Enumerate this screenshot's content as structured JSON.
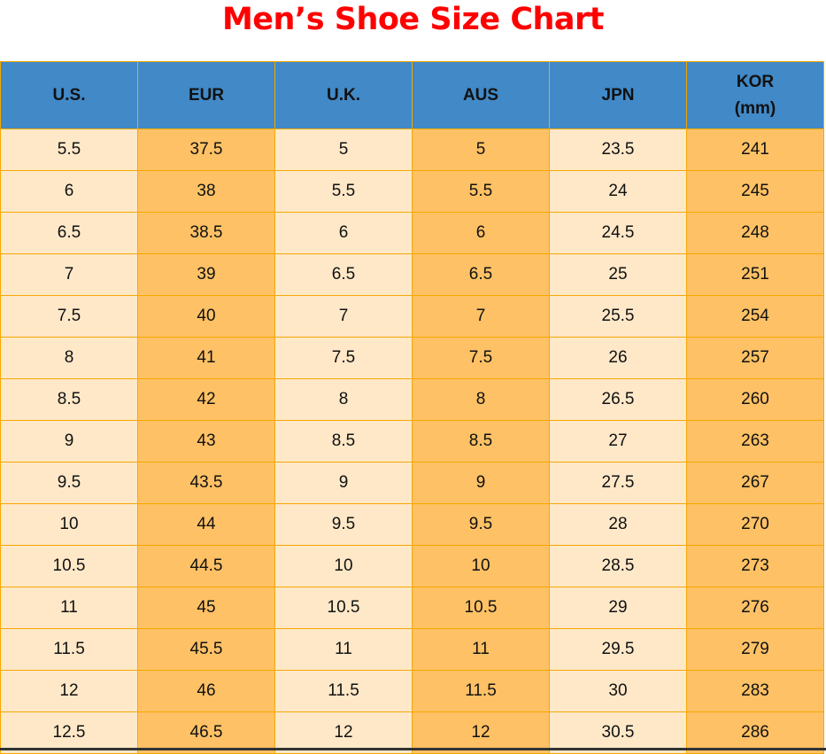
{
  "title": "Men’s Shoe Size Chart",
  "headers": [
    [
      "U.S."
    ],
    [
      "EUR"
    ],
    [
      "U.K."
    ],
    [
      "AUS"
    ],
    [
      "JPN"
    ],
    [
      "KOR",
      "(mm)"
    ]
  ],
  "colors": {
    "title": "#ff0000",
    "header_bg": "#4189c7",
    "light_cell": "#fee8c8",
    "dark_cell": "#fec165",
    "border": "#f5a800"
  },
  "rows": [
    [
      "5.5",
      "37.5",
      "5",
      "5",
      "23.5",
      "241"
    ],
    [
      "6",
      "38",
      "5.5",
      "5.5",
      "24",
      "245"
    ],
    [
      "6.5",
      "38.5",
      "6",
      "6",
      "24.5",
      "248"
    ],
    [
      "7",
      "39",
      "6.5",
      "6.5",
      "25",
      "251"
    ],
    [
      "7.5",
      "40",
      "7",
      "7",
      "25.5",
      "254"
    ],
    [
      "8",
      "41",
      "7.5",
      "7.5",
      "26",
      "257"
    ],
    [
      "8.5",
      "42",
      "8",
      "8",
      "26.5",
      "260"
    ],
    [
      "9",
      "43",
      "8.5",
      "8.5",
      "27",
      "263"
    ],
    [
      "9.5",
      "43.5",
      "9",
      "9",
      "27.5",
      "267"
    ],
    [
      "10",
      "44",
      "9.5",
      "9.5",
      "28",
      "270"
    ],
    [
      "10.5",
      "44.5",
      "10",
      "10",
      "28.5",
      "273"
    ],
    [
      "11",
      "45",
      "10.5",
      "10.5",
      "29",
      "276"
    ],
    [
      "11.5",
      "45.5",
      "11",
      "11",
      "29.5",
      "279"
    ],
    [
      "12",
      "46",
      "11.5",
      "11.5",
      "30",
      "283"
    ],
    [
      "12.5",
      "46.5",
      "12",
      "12",
      "30.5",
      "286"
    ]
  ]
}
